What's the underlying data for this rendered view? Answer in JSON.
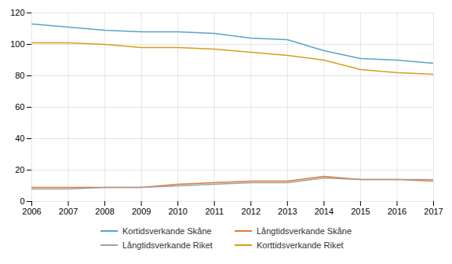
{
  "chart_data": {
    "type": "line",
    "x": [
      2006,
      2007,
      2008,
      2009,
      2010,
      2011,
      2012,
      2013,
      2014,
      2015,
      2016,
      2017
    ],
    "series": [
      {
        "name": "Kortidsverkande Skåne",
        "color": "#5BA3C9",
        "values": [
          113,
          111,
          109,
          108,
          108,
          107,
          104,
          103,
          96,
          91,
          90,
          88
        ]
      },
      {
        "name": "Långtidsverkande Skåne",
        "color": "#E07B39",
        "values": [
          9,
          9,
          9,
          9,
          11,
          12,
          13,
          13,
          16,
          14,
          14,
          13
        ]
      },
      {
        "name": "Långtidsverkande Riket",
        "color": "#A0A0A0",
        "values": [
          8,
          8,
          9,
          9,
          10,
          11,
          12,
          12,
          15,
          14,
          14,
          14
        ]
      },
      {
        "name": "Korttidsverkande Riket",
        "color": "#D4A017",
        "values": [
          101,
          101,
          100,
          98,
          98,
          97,
          95,
          93,
          90,
          84,
          82,
          81
        ]
      }
    ],
    "xlim": [
      2006,
      2017
    ],
    "xticks": [
      2006,
      2007,
      2008,
      2009,
      2010,
      2011,
      2012,
      2013,
      2014,
      2015,
      2016,
      2017
    ],
    "ylim": [
      0,
      120
    ],
    "yticks": [
      0,
      20,
      40,
      60,
      80,
      100,
      120
    ],
    "grid": true,
    "legend": "bottom"
  }
}
